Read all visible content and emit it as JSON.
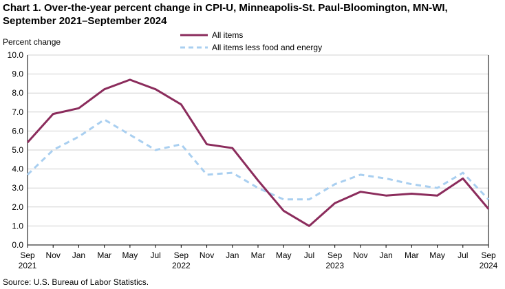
{
  "title": "Chart 1. Over-the-year percent change in CPI-U, Minneapolis-St. Paul-Bloomington, MN-WI, September 2021–September 2024",
  "source": "Source: U.S. Bureau of Labor Statistics.",
  "chart_data": {
    "type": "line",
    "title": "Chart 1. Over-the-year percent change in CPI-U, Minneapolis-St. Paul-Bloomington, MN-WI, September 2021–September 2024",
    "ylabel": "Percent change",
    "xlabel": "",
    "ylim": [
      0,
      10
    ],
    "yticks": [
      "0.0",
      "1.0",
      "2.0",
      "3.0",
      "4.0",
      "5.0",
      "6.0",
      "7.0",
      "8.0",
      "9.0",
      "10.0"
    ],
    "grid": "horizontal",
    "legend_position": "top-center",
    "categories": [
      "Sep 2021",
      "Nov 2021",
      "Jan 2022",
      "Mar 2022",
      "May 2022",
      "Jul 2022",
      "Sep 2022",
      "Nov 2022",
      "Jan 2023",
      "Mar 2023",
      "May 2023",
      "Jul 2023",
      "Sep 2023",
      "Nov 2023",
      "Jan 2024",
      "Mar 2024",
      "May 2024",
      "Jul 2024",
      "Sep 2024"
    ],
    "xtick_labels": [
      {
        "month": "Sep",
        "year": "2021"
      },
      {
        "month": "Nov",
        "year": ""
      },
      {
        "month": "Jan",
        "year": ""
      },
      {
        "month": "Mar",
        "year": ""
      },
      {
        "month": "May",
        "year": ""
      },
      {
        "month": "Jul",
        "year": ""
      },
      {
        "month": "Sep",
        "year": "2022"
      },
      {
        "month": "Nov",
        "year": ""
      },
      {
        "month": "Jan",
        "year": ""
      },
      {
        "month": "Mar",
        "year": ""
      },
      {
        "month": "May",
        "year": ""
      },
      {
        "month": "Jul",
        "year": ""
      },
      {
        "month": "Sep",
        "year": "2023"
      },
      {
        "month": "Nov",
        "year": ""
      },
      {
        "month": "Jan",
        "year": ""
      },
      {
        "month": "Mar",
        "year": ""
      },
      {
        "month": "May",
        "year": ""
      },
      {
        "month": "Jul",
        "year": ""
      },
      {
        "month": "Sep",
        "year": "2024"
      }
    ],
    "series": [
      {
        "name": "All items",
        "color": "#8b2c5c",
        "style": "solid",
        "values": [
          5.4,
          6.9,
          7.2,
          8.2,
          8.7,
          8.2,
          7.4,
          5.3,
          5.1,
          3.4,
          1.8,
          1.0,
          2.2,
          2.8,
          2.6,
          2.7,
          2.6,
          3.5,
          1.9
        ]
      },
      {
        "name": "All items less food and energy",
        "color": "#a9cff0",
        "style": "dashed",
        "values": [
          3.7,
          5.0,
          5.7,
          6.6,
          5.8,
          5.0,
          5.3,
          3.7,
          3.8,
          3.0,
          2.4,
          2.4,
          3.2,
          3.7,
          3.5,
          3.2,
          3.0,
          3.8,
          2.4
        ]
      }
    ]
  }
}
